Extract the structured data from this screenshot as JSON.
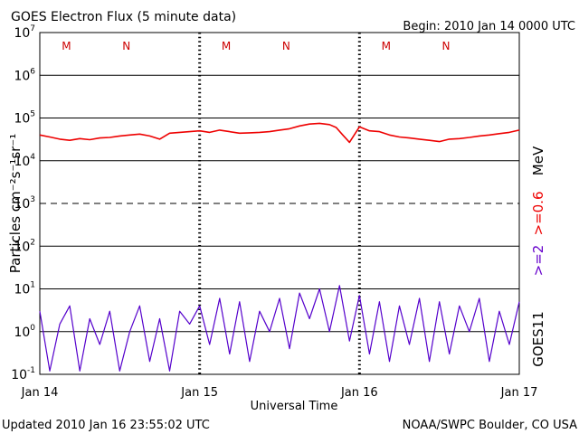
{
  "header": {
    "title": "GOES Electron Flux (5 minute data)",
    "begin": "Begin: 2010 Jan 14 0000 UTC"
  },
  "footer": {
    "updated": "Updated 2010 Jan 16 23:55:02 UTC",
    "source": "NOAA/SWPC Boulder, CO USA"
  },
  "right_labels": {
    "satellite": "GOES11",
    "channel_2": ">=2",
    "channel_06": ">=0.6",
    "unit": "MeV"
  },
  "markers": [
    "M",
    "N",
    "M",
    "N",
    "M",
    "N"
  ],
  "colors": {
    "series_06": "#ee0000",
    "series_2": "#5500cc",
    "axis": "#000000",
    "marker": "#cc0000"
  },
  "chart_data": {
    "type": "line",
    "title": "GOES Electron Flux (5 minute data)",
    "xlabel": "Universal Time",
    "ylabel": "Particles cm⁻²s⁻¹sr⁻¹",
    "y_scale": "log",
    "ylim": [
      0.1,
      10000000
    ],
    "x_range_hours": [
      0,
      72
    ],
    "x_ticks": [
      {
        "hour": 0,
        "label": "Jan 14"
      },
      {
        "hour": 24,
        "label": "Jan 15"
      },
      {
        "hour": 48,
        "label": "Jan 16"
      },
      {
        "hour": 72,
        "label": "Jan 17"
      }
    ],
    "y_ticks": [
      {
        "value": 0.1,
        "base": "10",
        "exp": "-1"
      },
      {
        "value": 1,
        "base": "10",
        "exp": "0"
      },
      {
        "value": 10,
        "base": "10",
        "exp": "1"
      },
      {
        "value": 100,
        "base": "10",
        "exp": "2"
      },
      {
        "value": 1000,
        "base": "10",
        "exp": "3"
      },
      {
        "value": 10000,
        "base": "10",
        "exp": "4"
      },
      {
        "value": 100000,
        "base": "10",
        "exp": "5"
      },
      {
        "value": 1000000,
        "base": "10",
        "exp": "6"
      },
      {
        "value": 10000000,
        "base": "10",
        "exp": "7"
      }
    ],
    "threshold": 1000,
    "series": [
      {
        "name": ">=0.6 MeV",
        "x": [
          0,
          1.5,
          3,
          4.5,
          6,
          7.5,
          9,
          10.5,
          12,
          13.5,
          15,
          16.5,
          18,
          19.5,
          21,
          22.5,
          24,
          25.5,
          27,
          28.5,
          30,
          31.5,
          33,
          34.5,
          36,
          37.5,
          39,
          40.5,
          42,
          43.5,
          44.5,
          45.5,
          46.5,
          48,
          49.5,
          51,
          52.5,
          54,
          55.5,
          57,
          58.5,
          60,
          61.5,
          63,
          64.5,
          66,
          67.5,
          69,
          70.5,
          72
        ],
        "y": [
          40000,
          36000,
          32000,
          30000,
          33000,
          31000,
          34000,
          35000,
          38000,
          40000,
          42000,
          38000,
          32000,
          44000,
          46000,
          48000,
          50000,
          46000,
          52000,
          48000,
          44000,
          45000,
          46000,
          48000,
          52000,
          56000,
          65000,
          72000,
          75000,
          70000,
          60000,
          40000,
          27000,
          62000,
          50000,
          48000,
          40000,
          36000,
          34000,
          32000,
          30000,
          28000,
          32000,
          33000,
          35000,
          38000,
          40000,
          43000,
          46000,
          52000
        ]
      },
      {
        "name": ">=2 MeV",
        "x": [
          0,
          1.5,
          3,
          4.5,
          6,
          7.5,
          9,
          10.5,
          12,
          13.5,
          15,
          16.5,
          18,
          19.5,
          21,
          22.5,
          24,
          25.5,
          27,
          28.5,
          30,
          31.5,
          33,
          34.5,
          36,
          37.5,
          39,
          40.5,
          42,
          43.5,
          45,
          46.5,
          48,
          49.5,
          51,
          52.5,
          54,
          55.5,
          57,
          58.5,
          60,
          61.5,
          63,
          64.5,
          66,
          67.5,
          69,
          70.5,
          72
        ],
        "y": [
          3,
          0.12,
          1.5,
          4,
          0.12,
          2,
          0.5,
          3,
          0.12,
          1,
          4,
          0.2,
          2,
          0.12,
          3,
          1.5,
          4,
          0.5,
          6,
          0.3,
          5,
          0.2,
          3,
          1,
          6,
          0.4,
          8,
          2,
          10,
          1,
          12,
          0.6,
          7,
          0.3,
          5,
          0.2,
          4,
          0.5,
          6,
          0.2,
          5,
          0.3,
          4,
          1,
          6,
          0.2,
          3,
          0.5,
          5
        ]
      }
    ]
  }
}
